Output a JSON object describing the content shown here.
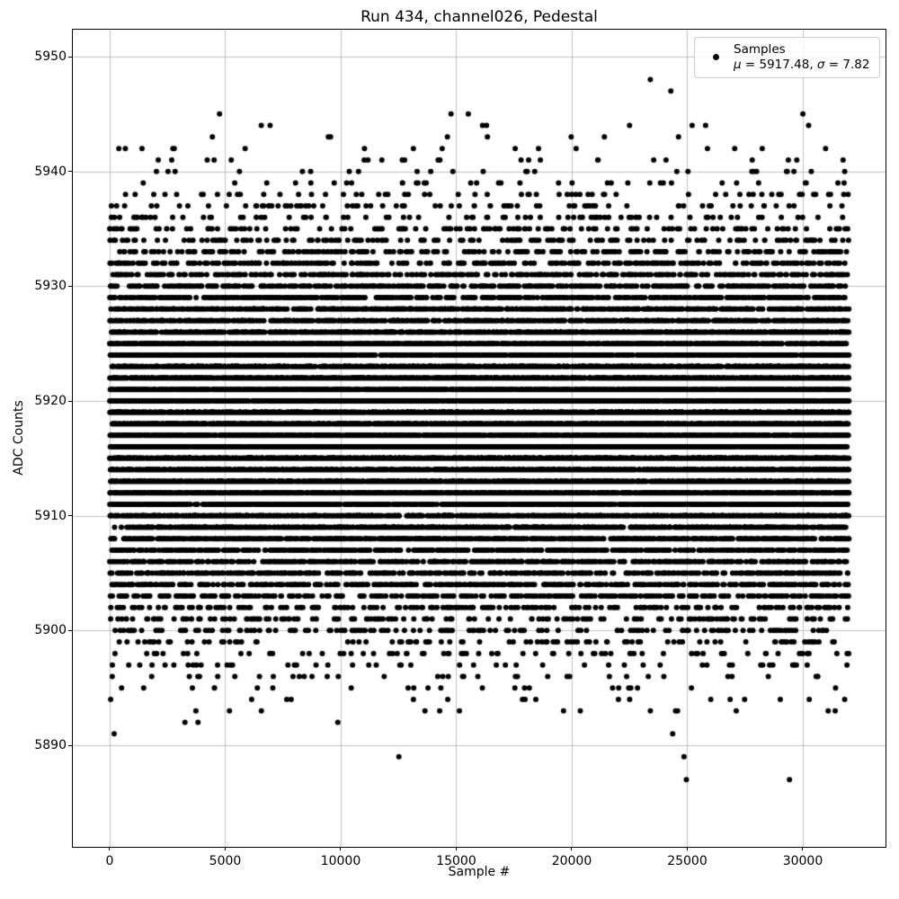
{
  "figure": {
    "title": "Run 434, channel026, Pedestal",
    "xlabel": "Sample #",
    "ylabel": "ADC Counts"
  },
  "legend": {
    "line1": "Samples",
    "line2": "μ = 5917.48, σ = 7.82"
  },
  "chart_data": {
    "type": "scatter",
    "title": "Run 434, channel026, Pedestal",
    "xlabel": "Sample #",
    "ylabel": "ADC Counts",
    "x_ticks": [
      0,
      5000,
      10000,
      15000,
      20000,
      25000,
      30000
    ],
    "y_ticks": [
      5890,
      5900,
      5910,
      5920,
      5930,
      5940,
      5950
    ],
    "xlim": [
      -1595,
      33580
    ],
    "ylim": [
      5881.15,
      5952.35
    ],
    "grid": true,
    "legend_position": "upper right",
    "legend_entries": [
      {
        "label": "Samples",
        "sublabel": "μ = 5917.48, σ = 7.82",
        "marker": "point",
        "color": "#000000"
      }
    ],
    "series": [
      {
        "name": "Samples",
        "n_points": 32000,
        "x_start": 0,
        "x_end": 31999,
        "y_model": {
          "distribution": "gaussian",
          "mean": 5917.48,
          "sigma": 7.82,
          "rounded_to_integers": true,
          "observed_min": 5885,
          "observed_max": 5949
        },
        "marker_color": "#000000",
        "marker_diameter_px": 6
      }
    ],
    "stats": {
      "mu": 5917.48,
      "sigma": 7.82
    }
  },
  "style": {
    "background": "#ffffff",
    "grid_color": "#b0b0b0",
    "spine_color": "#000000",
    "marker_color": "#000000",
    "legend_border": "#cccccc"
  }
}
